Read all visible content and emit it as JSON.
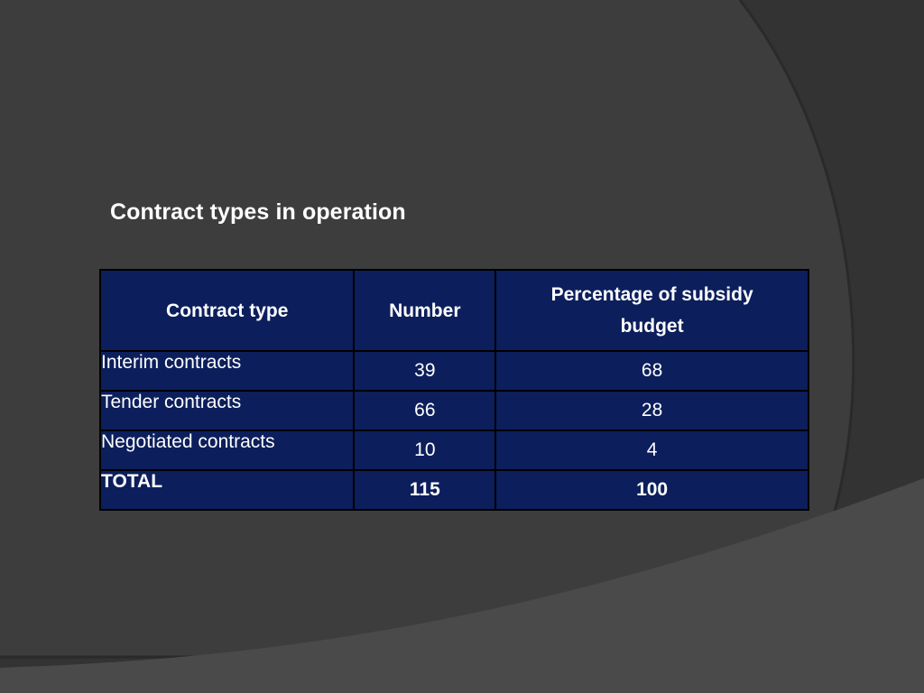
{
  "slide": {
    "title": "Contract types in operation"
  },
  "table": {
    "headers": {
      "contract_type": "Contract type",
      "number": "Number",
      "percentage": "Percentage of subsidy budget"
    },
    "rows": [
      {
        "type": "Interim contracts",
        "number": "39",
        "percentage": "68"
      },
      {
        "type": "Tender contracts",
        "number": "66",
        "percentage": "28"
      },
      {
        "type": "Negotiated contracts",
        "number": "10",
        "percentage": "4"
      }
    ],
    "total": {
      "type": "TOTAL",
      "number": "115",
      "percentage": "100"
    }
  },
  "colors": {
    "background": "#3a3a3a",
    "table_fill": "#0c1f5c",
    "table_border": "#000000",
    "text": "#ffffff"
  }
}
